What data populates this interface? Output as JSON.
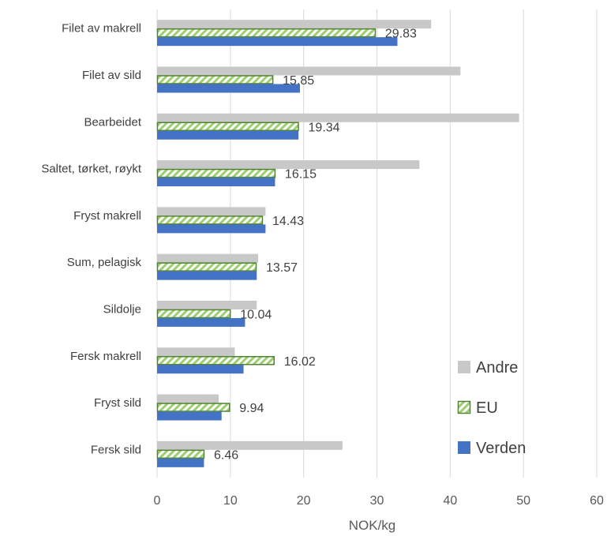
{
  "chart_data": {
    "type": "bar",
    "orientation": "horizontal",
    "categories": [
      "Fersk sild",
      "Fryst sild",
      "Fersk makrell",
      "Sildolje",
      "Sum, pelagisk",
      "Fryst makrell",
      "Saltet, tørket, røykt",
      "Bearbeidet",
      "Filet av sild",
      "Filet av makrell"
    ],
    "series": [
      {
        "name": "Andre",
        "values": [
          25.3,
          8.4,
          10.6,
          13.6,
          13.8,
          14.8,
          35.8,
          49.4,
          41.4,
          37.4
        ],
        "color": "#c8c8c8",
        "pattern": "solid"
      },
      {
        "name": "EU",
        "values": [
          6.46,
          9.94,
          16.02,
          10.04,
          13.57,
          14.43,
          16.15,
          19.34,
          15.85,
          29.83
        ],
        "labels": [
          "6.46",
          "9.94",
          "16.02",
          "10.04",
          "13.57",
          "14.43",
          "16.15",
          "19.34",
          "15.85",
          "29.83"
        ],
        "color": "#70ad47",
        "pattern": "diagonal-stripes"
      },
      {
        "name": "Verden",
        "values": [
          6.4,
          8.8,
          11.8,
          12.0,
          13.6,
          14.8,
          16.1,
          19.3,
          19.5,
          32.8
        ],
        "color": "#4472c4",
        "pattern": "solid"
      }
    ],
    "xlabel": "NOK/kg",
    "xlim": [
      0,
      60
    ],
    "xticks": [
      "0",
      "10",
      "20",
      "30",
      "40",
      "50",
      "60"
    ],
    "grid": "vertical",
    "legend": "bottom-right"
  }
}
